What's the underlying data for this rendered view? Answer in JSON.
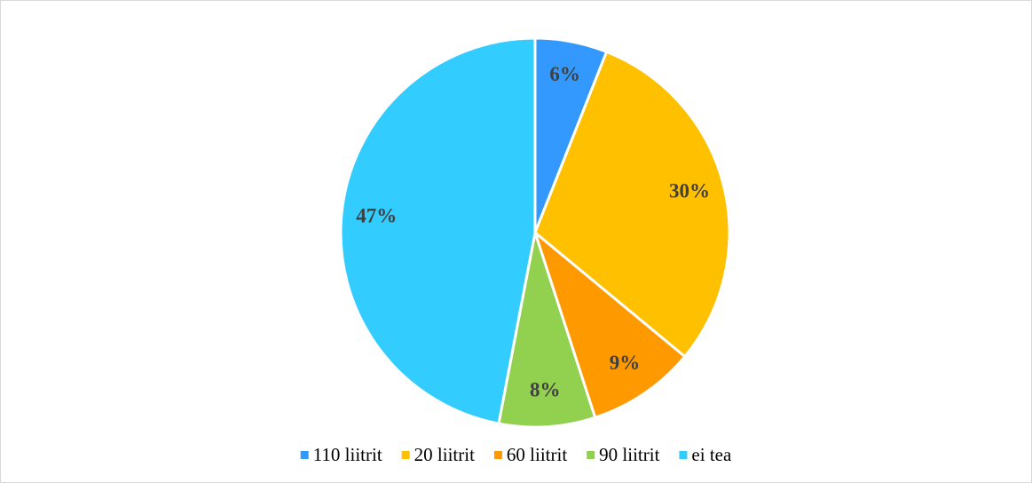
{
  "chart_data": {
    "type": "pie",
    "categories": [
      "110 liitrit",
      "20 liitrit",
      "60 liitrit",
      "90 liitrit",
      "ei tea"
    ],
    "values": [
      6,
      30,
      9,
      8,
      47
    ],
    "value_labels": [
      "6%",
      "30%",
      "9%",
      "8%",
      "47%"
    ],
    "colors": [
      "#3399ff",
      "#ffc000",
      "#ff9900",
      "#92d050",
      "#33ccff"
    ],
    "legend": "bottom"
  }
}
